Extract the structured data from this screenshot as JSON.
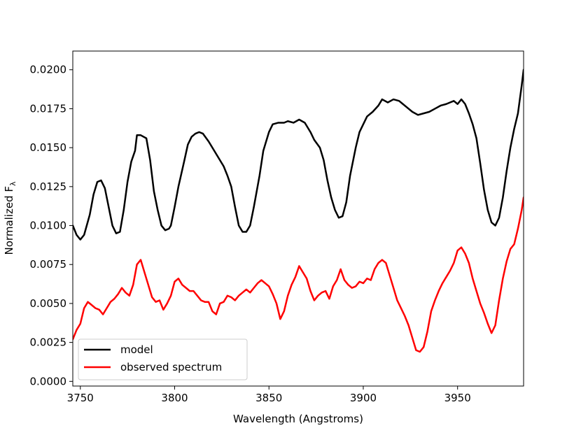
{
  "chart_data": {
    "type": "line",
    "title": "",
    "xlabel": "Wavelength (Angstroms)",
    "ylabel": "Normalized F",
    "ylabel_subscript": "λ",
    "xlim": [
      3746,
      3985
    ],
    "ylim": [
      -0.0003,
      0.0212
    ],
    "xticks": [
      3750,
      3800,
      3850,
      3900,
      3950
    ],
    "xtick_labels": [
      "3750",
      "3800",
      "3850",
      "3900",
      "3950"
    ],
    "yticks": [
      0.0,
      0.0025,
      0.005,
      0.0075,
      0.01,
      0.0125,
      0.015,
      0.0175,
      0.02
    ],
    "ytick_labels": [
      "0.0000",
      "0.0025",
      "0.0050",
      "0.0075",
      "0.0100",
      "0.0125",
      "0.0150",
      "0.0175",
      "0.0200"
    ],
    "grid": false,
    "legend_position": "lower-left",
    "series": [
      {
        "name": "model",
        "color": "#000000",
        "points": [
          [
            3746,
            0.01
          ],
          [
            3748,
            0.0094
          ],
          [
            3750,
            0.0091
          ],
          [
            3752,
            0.0094
          ],
          [
            3755,
            0.0107
          ],
          [
            3757,
            0.012
          ],
          [
            3759,
            0.0128
          ],
          [
            3761,
            0.0129
          ],
          [
            3763,
            0.0124
          ],
          [
            3765,
            0.0112
          ],
          [
            3767,
            0.01
          ],
          [
            3769,
            0.0095
          ],
          [
            3771,
            0.0096
          ],
          [
            3773,
            0.011
          ],
          [
            3775,
            0.0128
          ],
          [
            3777,
            0.0141
          ],
          [
            3779,
            0.0148
          ],
          [
            3780,
            0.0158
          ],
          [
            3782,
            0.0158
          ],
          [
            3785,
            0.0156
          ],
          [
            3787,
            0.0142
          ],
          [
            3789,
            0.0122
          ],
          [
            3791,
            0.011
          ],
          [
            3793,
            0.01
          ],
          [
            3795,
            0.0097
          ],
          [
            3797,
            0.0098
          ],
          [
            3798,
            0.01
          ],
          [
            3800,
            0.0112
          ],
          [
            3802,
            0.0125
          ],
          [
            3805,
            0.0141
          ],
          [
            3807,
            0.0152
          ],
          [
            3809,
            0.0157
          ],
          [
            3811,
            0.0159
          ],
          [
            3813,
            0.016
          ],
          [
            3815,
            0.0159
          ],
          [
            3818,
            0.0154
          ],
          [
            3820,
            0.015
          ],
          [
            3823,
            0.0144
          ],
          [
            3826,
            0.0138
          ],
          [
            3828,
            0.0132
          ],
          [
            3830,
            0.0125
          ],
          [
            3832,
            0.0112
          ],
          [
            3834,
            0.01
          ],
          [
            3836,
            0.0096
          ],
          [
            3838,
            0.0096
          ],
          [
            3840,
            0.01
          ],
          [
            3842,
            0.0112
          ],
          [
            3845,
            0.0132
          ],
          [
            3847,
            0.0148
          ],
          [
            3850,
            0.016
          ],
          [
            3852,
            0.0165
          ],
          [
            3855,
            0.0166
          ],
          [
            3858,
            0.0166
          ],
          [
            3860,
            0.0167
          ],
          [
            3863,
            0.0166
          ],
          [
            3866,
            0.0168
          ],
          [
            3869,
            0.0166
          ],
          [
            3872,
            0.016
          ],
          [
            3874,
            0.0155
          ],
          [
            3877,
            0.015
          ],
          [
            3879,
            0.0142
          ],
          [
            3881,
            0.0129
          ],
          [
            3883,
            0.0118
          ],
          [
            3885,
            0.011
          ],
          [
            3887,
            0.0105
          ],
          [
            3889,
            0.0106
          ],
          [
            3891,
            0.0115
          ],
          [
            3893,
            0.0132
          ],
          [
            3896,
            0.015
          ],
          [
            3898,
            0.016
          ],
          [
            3900,
            0.0165
          ],
          [
            3902,
            0.017
          ],
          [
            3905,
            0.0173
          ],
          [
            3908,
            0.0177
          ],
          [
            3910,
            0.0181
          ],
          [
            3913,
            0.0179
          ],
          [
            3916,
            0.0181
          ],
          [
            3919,
            0.018
          ],
          [
            3921,
            0.0178
          ],
          [
            3923,
            0.0176
          ],
          [
            3926,
            0.0173
          ],
          [
            3929,
            0.0171
          ],
          [
            3932,
            0.0172
          ],
          [
            3935,
            0.0173
          ],
          [
            3938,
            0.0175
          ],
          [
            3941,
            0.0177
          ],
          [
            3944,
            0.0178
          ],
          [
            3946,
            0.0179
          ],
          [
            3948,
            0.018
          ],
          [
            3950,
            0.0178
          ],
          [
            3952,
            0.0181
          ],
          [
            3954,
            0.0178
          ],
          [
            3956,
            0.0172
          ],
          [
            3958,
            0.0165
          ],
          [
            3960,
            0.0156
          ],
          [
            3962,
            0.014
          ],
          [
            3964,
            0.0123
          ],
          [
            3966,
            0.011
          ],
          [
            3968,
            0.0102
          ],
          [
            3970,
            0.01
          ],
          [
            3972,
            0.0105
          ],
          [
            3974,
            0.0118
          ],
          [
            3976,
            0.0135
          ],
          [
            3978,
            0.015
          ],
          [
            3980,
            0.0162
          ],
          [
            3982,
            0.0172
          ],
          [
            3984,
            0.019
          ],
          [
            3985,
            0.02
          ]
        ]
      },
      {
        "name": "observed spectrum",
        "color": "#ff0000",
        "points": [
          [
            3746,
            0.0027
          ],
          [
            3748,
            0.0033
          ],
          [
            3750,
            0.0037
          ],
          [
            3752,
            0.0047
          ],
          [
            3754,
            0.0051
          ],
          [
            3756,
            0.0049
          ],
          [
            3758,
            0.0047
          ],
          [
            3760,
            0.0046
          ],
          [
            3762,
            0.0043
          ],
          [
            3764,
            0.0047
          ],
          [
            3766,
            0.0051
          ],
          [
            3768,
            0.0053
          ],
          [
            3770,
            0.0056
          ],
          [
            3772,
            0.006
          ],
          [
            3774,
            0.0057
          ],
          [
            3776,
            0.0055
          ],
          [
            3778,
            0.0062
          ],
          [
            3780,
            0.0075
          ],
          [
            3782,
            0.0078
          ],
          [
            3784,
            0.007
          ],
          [
            3786,
            0.0062
          ],
          [
            3788,
            0.0054
          ],
          [
            3790,
            0.0051
          ],
          [
            3792,
            0.0052
          ],
          [
            3794,
            0.0046
          ],
          [
            3796,
            0.005
          ],
          [
            3798,
            0.0055
          ],
          [
            3800,
            0.0064
          ],
          [
            3802,
            0.0066
          ],
          [
            3804,
            0.0062
          ],
          [
            3806,
            0.006
          ],
          [
            3808,
            0.0058
          ],
          [
            3810,
            0.0058
          ],
          [
            3812,
            0.0055
          ],
          [
            3814,
            0.0052
          ],
          [
            3816,
            0.0051
          ],
          [
            3818,
            0.0051
          ],
          [
            3820,
            0.0045
          ],
          [
            3822,
            0.0043
          ],
          [
            3824,
            0.005
          ],
          [
            3826,
            0.0051
          ],
          [
            3828,
            0.0055
          ],
          [
            3830,
            0.0054
          ],
          [
            3832,
            0.0052
          ],
          [
            3834,
            0.0055
          ],
          [
            3836,
            0.0057
          ],
          [
            3838,
            0.0059
          ],
          [
            3840,
            0.0057
          ],
          [
            3842,
            0.006
          ],
          [
            3844,
            0.0063
          ],
          [
            3846,
            0.0065
          ],
          [
            3848,
            0.0063
          ],
          [
            3850,
            0.0061
          ],
          [
            3852,
            0.0056
          ],
          [
            3854,
            0.005
          ],
          [
            3856,
            0.004
          ],
          [
            3858,
            0.0045
          ],
          [
            3860,
            0.0055
          ],
          [
            3862,
            0.0062
          ],
          [
            3864,
            0.0067
          ],
          [
            3866,
            0.0074
          ],
          [
            3868,
            0.007
          ],
          [
            3870,
            0.0066
          ],
          [
            3872,
            0.0058
          ],
          [
            3874,
            0.0052
          ],
          [
            3876,
            0.0055
          ],
          [
            3878,
            0.0057
          ],
          [
            3880,
            0.0058
          ],
          [
            3882,
            0.0053
          ],
          [
            3884,
            0.0061
          ],
          [
            3886,
            0.0065
          ],
          [
            3888,
            0.0072
          ],
          [
            3890,
            0.0065
          ],
          [
            3892,
            0.0062
          ],
          [
            3894,
            0.006
          ],
          [
            3896,
            0.0061
          ],
          [
            3898,
            0.0064
          ],
          [
            3900,
            0.0063
          ],
          [
            3902,
            0.0066
          ],
          [
            3904,
            0.0065
          ],
          [
            3906,
            0.0072
          ],
          [
            3908,
            0.0076
          ],
          [
            3910,
            0.0078
          ],
          [
            3912,
            0.0076
          ],
          [
            3914,
            0.0068
          ],
          [
            3916,
            0.006
          ],
          [
            3918,
            0.0052
          ],
          [
            3920,
            0.0047
          ],
          [
            3922,
            0.0042
          ],
          [
            3924,
            0.0036
          ],
          [
            3926,
            0.0028
          ],
          [
            3928,
            0.002
          ],
          [
            3930,
            0.0019
          ],
          [
            3932,
            0.0022
          ],
          [
            3934,
            0.0032
          ],
          [
            3936,
            0.0045
          ],
          [
            3938,
            0.0052
          ],
          [
            3940,
            0.0058
          ],
          [
            3942,
            0.0063
          ],
          [
            3944,
            0.0067
          ],
          [
            3946,
            0.0071
          ],
          [
            3948,
            0.0076
          ],
          [
            3950,
            0.0084
          ],
          [
            3952,
            0.0086
          ],
          [
            3954,
            0.0082
          ],
          [
            3956,
            0.0076
          ],
          [
            3958,
            0.0066
          ],
          [
            3960,
            0.0058
          ],
          [
            3962,
            0.005
          ],
          [
            3964,
            0.0044
          ],
          [
            3966,
            0.0037
          ],
          [
            3968,
            0.0031
          ],
          [
            3970,
            0.0036
          ],
          [
            3972,
            0.0052
          ],
          [
            3974,
            0.0066
          ],
          [
            3976,
            0.0077
          ],
          [
            3978,
            0.0085
          ],
          [
            3980,
            0.0088
          ],
          [
            3982,
            0.0098
          ],
          [
            3984,
            0.011
          ],
          [
            3985,
            0.0118
          ]
        ]
      }
    ]
  }
}
